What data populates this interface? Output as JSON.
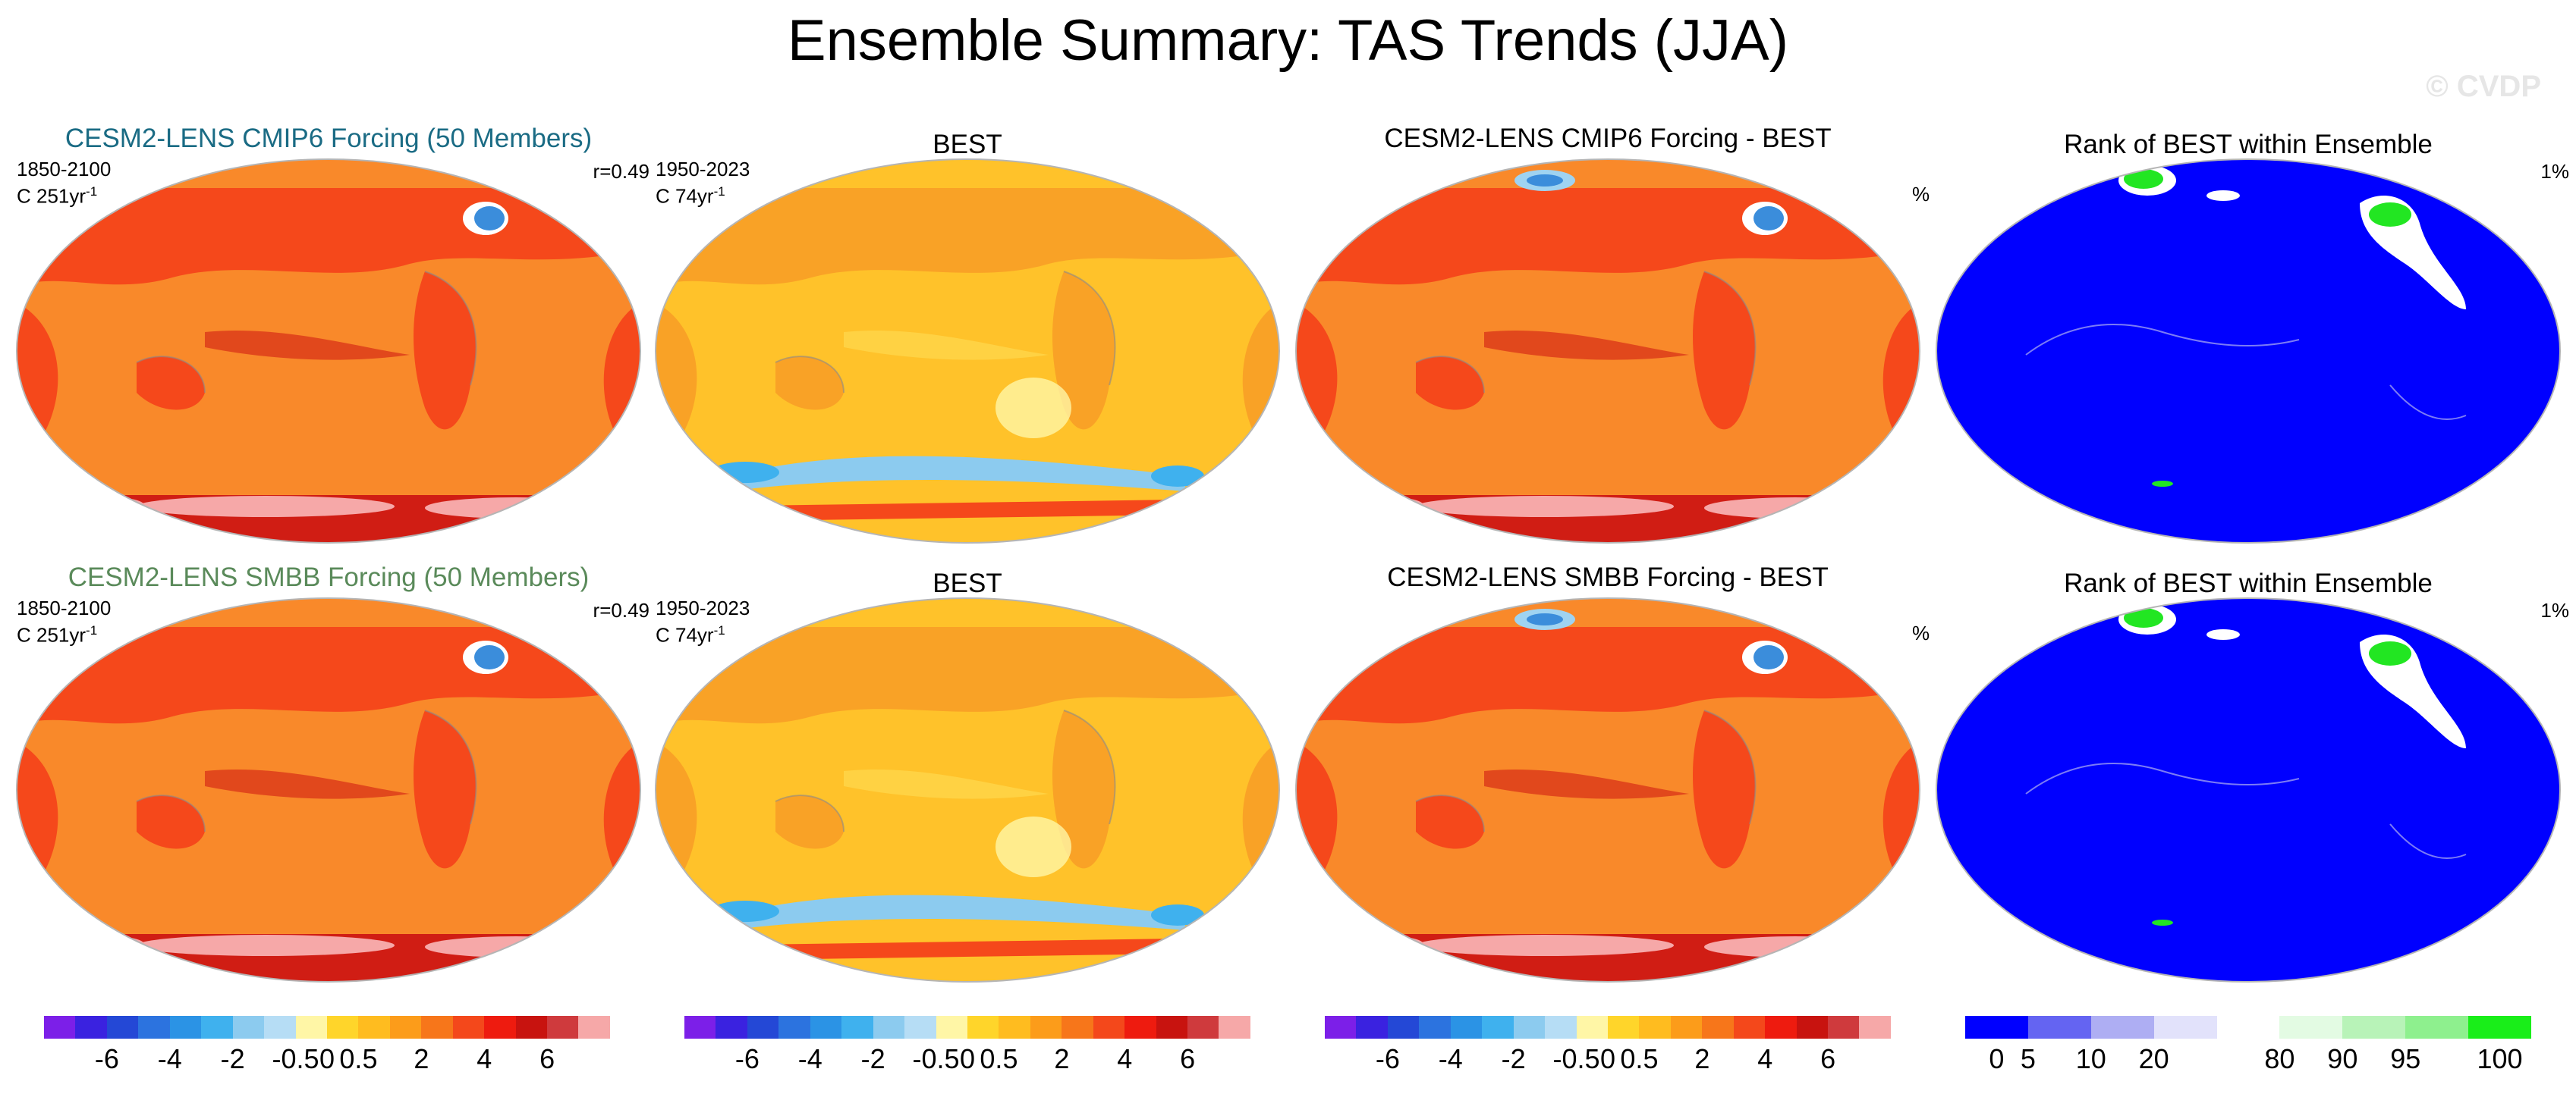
{
  "title": "Ensemble Summary: TAS Trends (JJA)",
  "watermark": "© CVDP",
  "colors": {
    "ocean_warm": "#f9892a",
    "land_warm": "#f5481b",
    "hot": "#d01d14",
    "cool": "#9fd3f1",
    "cold": "#3b8ddb",
    "rank_blue": "#0000ff",
    "rank_green": "#22e622",
    "outline": "#b5b5b5"
  },
  "rows": [
    {
      "panels": [
        {
          "title": "CESM2-LENS CMIP6 Forcing (50 Members)",
          "title_color": "#1a6b84",
          "left_top": "1850-2100",
          "left_bottom": "C 251yr",
          "sup": "-1",
          "right": "r=0.49",
          "kind": "model"
        },
        {
          "title": "BEST",
          "title_color": "#000000",
          "left_top": "1950-2023",
          "left_bottom": "C 74yr",
          "sup": "-1",
          "right": "",
          "kind": "obs"
        },
        {
          "title": "CESM2-LENS CMIP6 Forcing - BEST",
          "title_color": "#000000",
          "left_top": "",
          "left_bottom": "",
          "sup": "",
          "right": "",
          "kind": "diff"
        },
        {
          "title": "Rank of BEST within Ensemble",
          "title_color": "#000000",
          "left_top": "",
          "left_bottom": "%",
          "sup": "",
          "right": "1%",
          "kind": "rank"
        }
      ]
    },
    {
      "panels": [
        {
          "title": "CESM2-LENS SMBB Forcing (50 Members)",
          "title_color": "#5a8a5a",
          "left_top": "1850-2100",
          "left_bottom": "C 251yr",
          "sup": "-1",
          "right": "r=0.49",
          "kind": "model"
        },
        {
          "title": "BEST",
          "title_color": "#000000",
          "left_top": "1950-2023",
          "left_bottom": "C 74yr",
          "sup": "-1",
          "right": "",
          "kind": "obs"
        },
        {
          "title": "CESM2-LENS SMBB Forcing - BEST",
          "title_color": "#000000",
          "left_top": "",
          "left_bottom": "",
          "sup": "",
          "right": "",
          "kind": "diff"
        },
        {
          "title": "Rank of BEST within Ensemble",
          "title_color": "#000000",
          "left_top": "",
          "left_bottom": "%",
          "sup": "",
          "right": "1%",
          "kind": "rank"
        }
      ]
    }
  ],
  "chart_data": [
    {
      "type": "heatmap",
      "description": "Global map panels of surface air temperature trend (JJA)",
      "colorbar": {
        "colors": [
          "#7c1fe8",
          "#3a22e0",
          "#2448d6",
          "#2c73df",
          "#2b93e5",
          "#3fb1ee",
          "#8ccbef",
          "#b6ddf5",
          "#fff6a6",
          "#ffd52a",
          "#ffbc1f",
          "#fc9c1a",
          "#f7761a",
          "#f4481b",
          "#ee1b0f",
          "#c8130f",
          "#cf3a3d",
          "#f6a8a8"
        ],
        "tick_labels": [
          "-6",
          "-4",
          "-2",
          "-0.5",
          "0",
          "0.5",
          "2",
          "4",
          "6"
        ],
        "tick_boundaries": [
          2,
          4,
          6,
          8,
          9,
          10,
          12,
          14,
          16
        ]
      }
    },
    {
      "type": "heatmap",
      "description": "Rank of BEST within Ensemble",
      "colorbar": {
        "colors": [
          "#0000ff",
          "#6464f2",
          "#aeaef3",
          "#e2e2fb",
          "#ffffff",
          "#e3fbe3",
          "#b8f3b8",
          "#8ef08e",
          "#19ee19"
        ],
        "tick_labels": [
          "0",
          "5",
          "10",
          "20",
          "80",
          "90",
          "95",
          "100"
        ],
        "tick_boundaries": [
          0.5,
          1,
          2,
          3,
          5,
          6,
          7,
          8.5
        ]
      }
    }
  ]
}
